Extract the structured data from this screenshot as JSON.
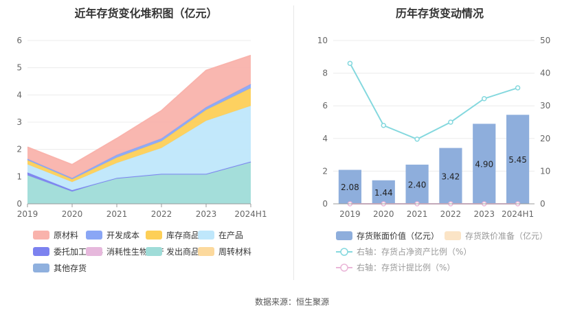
{
  "left_title": "近年存货变化堆积图（亿元）",
  "right_title": "历年存货变动情况",
  "source": "数据来源：恒生聚源",
  "colors": {
    "原材料": "#f9b3ac",
    "开发成本": "#8aa6f5",
    "库存商品": "#fdcf57",
    "在产品": "#bfe7fb",
    "委托加工材料": "#7c82ef",
    "消耗性生物资产": "#e6b8dc",
    "发出商品": "#9fdcd8",
    "周转材料": "#fcd99d",
    "其他存货": "#8fb0de",
    "bar": "#8eaedc",
    "bar_prep": "#fbe4c6",
    "line_ratio": "#84d8de",
    "line_prov": "#eab6d8"
  },
  "chart_data": [
    {
      "type": "area",
      "title": "近年存货变化堆积图（亿元）",
      "categories": [
        "2019",
        "2020",
        "2021",
        "2022",
        "2023",
        "2024H1"
      ],
      "ylim": [
        0,
        6
      ],
      "yticks": [
        0,
        1,
        2,
        3,
        4,
        5,
        6
      ],
      "stacked": true,
      "legend": [
        "原材料",
        "开发成本",
        "库存商品",
        "在产品",
        "委托加工材料",
        "消耗性生物资产",
        "发出商品",
        "周转材料",
        "其他存货"
      ],
      "series": [
        {
          "name": "发出商品",
          "values": [
            1.05,
            0.45,
            0.95,
            1.1,
            1.1,
            1.55
          ]
        },
        {
          "name": "委托加工材料",
          "values": [
            0.1,
            0.05,
            0.0,
            0.0,
            0.0,
            0.0
          ]
        },
        {
          "name": "在产品",
          "values": [
            0.3,
            0.3,
            0.55,
            0.95,
            1.95,
            2.05
          ]
        },
        {
          "name": "库存商品",
          "values": [
            0.15,
            0.1,
            0.2,
            0.25,
            0.4,
            0.65
          ]
        },
        {
          "name": "开发成本",
          "values": [
            0.05,
            0.05,
            0.1,
            0.1,
            0.1,
            0.15
          ]
        },
        {
          "name": "原材料",
          "values": [
            0.43,
            0.49,
            0.6,
            1.02,
            1.35,
            1.05
          ]
        }
      ]
    },
    {
      "type": "bar",
      "title": "历年存货变动情况",
      "categories": [
        "2019",
        "2020",
        "2021",
        "2022",
        "2023",
        "2024H1"
      ],
      "ylim": [
        0,
        10
      ],
      "yticks": [
        0,
        2,
        4,
        6,
        8,
        10
      ],
      "y2lim": [
        0,
        50
      ],
      "y2ticks": [
        0,
        10,
        20,
        30,
        40,
        50
      ],
      "series": [
        {
          "name": "存货账面价值（亿元）",
          "axis": "left",
          "kind": "bar",
          "values": [
            2.08,
            1.44,
            2.4,
            3.42,
            4.9,
            5.45
          ]
        },
        {
          "name": "存货跌价准备（亿元）",
          "axis": "left",
          "kind": "bar",
          "values": [
            0,
            0,
            0,
            0,
            0,
            0
          ]
        },
        {
          "name": "右轴：存货占净资产比例（%）",
          "axis": "right",
          "kind": "line",
          "values": [
            43.0,
            24.0,
            19.8,
            25.0,
            32.2,
            35.5
          ]
        },
        {
          "name": "右轴：存货计提比例（%）",
          "axis": "right",
          "kind": "line",
          "values": [
            0,
            0,
            0,
            0,
            0,
            0
          ]
        }
      ],
      "labels": [
        "2.08",
        "1.44",
        "2.40",
        "3.42",
        "4.90",
        "5.45"
      ]
    }
  ]
}
